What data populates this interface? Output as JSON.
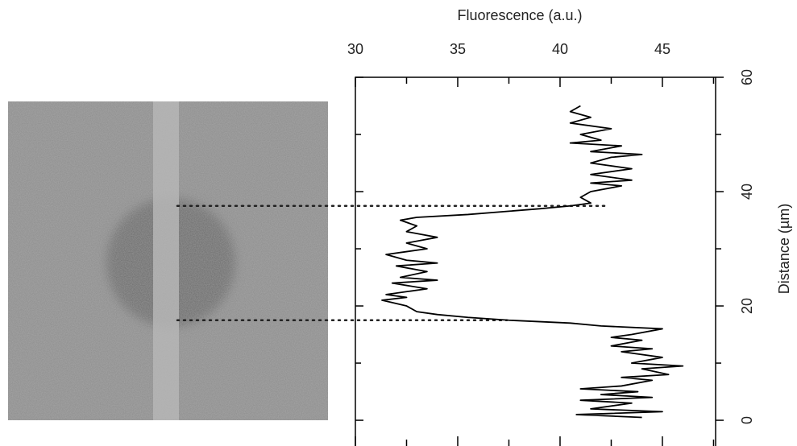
{
  "chart_data": {
    "type": "line",
    "xlabel": "Fluorescence (a.u.)",
    "ylabel": "Distance (µm)",
    "xlim": [
      30,
      47.6
    ],
    "xticks": [
      30,
      35,
      40,
      45
    ],
    "ylim": [
      -4.5,
      60
    ],
    "yticks": [
      0,
      20,
      40,
      60
    ],
    "hlines": [
      {
        "y": 37.5,
        "x_end": 42.3
      },
      {
        "y": 17.5,
        "x_end": 37.4
      }
    ],
    "y": [
      0.5,
      1,
      1.5,
      2,
      3,
      3.5,
      4,
      4.5,
      5,
      5.5,
      6,
      7,
      7.5,
      8,
      9,
      9.5,
      10,
      11,
      12,
      12.5,
      13,
      14,
      14.5,
      15,
      16,
      16.5,
      17,
      17.5,
      18,
      18.5,
      19,
      20,
      21,
      21.5,
      22,
      23,
      24,
      24.5,
      25,
      26,
      27,
      27.5,
      28,
      29,
      29.5,
      30,
      31,
      32,
      33,
      34,
      35,
      35.5,
      36,
      37,
      37.5,
      38,
      39,
      40,
      41,
      41.5,
      42,
      43,
      44,
      45,
      46,
      46.5,
      47,
      48,
      48.5,
      49,
      50,
      51,
      52,
      53,
      54,
      55
    ],
    "series": [
      {
        "color": "#000000",
        "values": [
          44,
          40.8,
          45,
          41.5,
          43.5,
          41,
          44.5,
          42,
          43.8,
          41,
          43,
          44.5,
          43,
          45.3,
          44,
          46,
          43.5,
          45,
          43,
          44.5,
          42.5,
          44,
          42.5,
          43.5,
          45,
          42,
          40.5,
          37.5,
          35.5,
          34,
          33,
          32.5,
          31.3,
          32.5,
          31.5,
          33.5,
          31.8,
          34,
          32.2,
          33.5,
          32,
          34,
          32.5,
          31.5,
          32.5,
          33.5,
          32.5,
          34,
          32.5,
          33,
          32.2,
          33,
          35.5,
          39,
          40.5,
          41.5,
          41,
          41.5,
          43,
          41.5,
          43.5,
          41.5,
          43.5,
          41.5,
          42.5,
          44,
          41.5,
          43,
          40.5,
          42,
          41,
          42.5,
          40.5,
          41.5,
          40.5,
          41
        ]
      }
    ]
  }
}
